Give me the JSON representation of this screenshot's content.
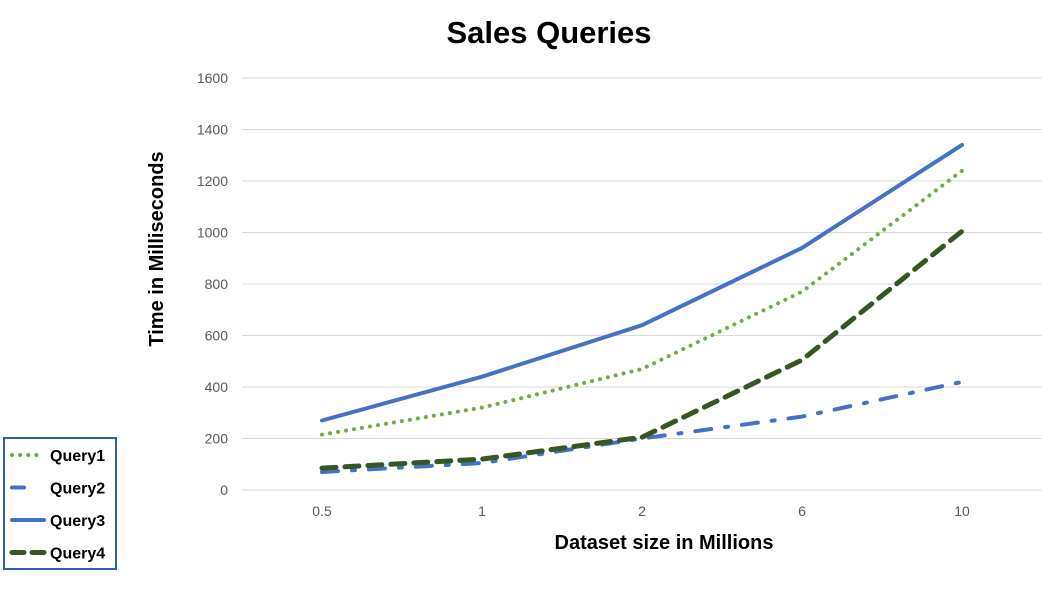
{
  "chart_data": {
    "type": "line",
    "title": "Sales Queries",
    "xlabel": "Dataset size in Millions",
    "ylabel": "Time in Milliseconds",
    "categories": [
      "0.5",
      "1",
      "2",
      "6",
      "10"
    ],
    "yticks": [
      "0",
      "200",
      "400",
      "600",
      "800",
      "1000",
      "1200",
      "1400",
      "1600"
    ],
    "ylim": [
      0,
      1600
    ],
    "grid": true,
    "legend_position": "bottom-left",
    "series": [
      {
        "name": "Query1",
        "values": [
          215,
          320,
          470,
          770,
          1240
        ],
        "color": "#70AD47",
        "style": "dotted"
      },
      {
        "name": "Query2",
        "values": [
          70,
          105,
          200,
          285,
          420
        ],
        "color": "#4472C4",
        "style": "dash-dot"
      },
      {
        "name": "Query3",
        "values": [
          270,
          440,
          640,
          940,
          1340
        ],
        "color": "#4472C4",
        "style": "solid"
      },
      {
        "name": "Query4",
        "values": [
          85,
          120,
          205,
          505,
          1005
        ],
        "color": "#375623",
        "style": "dashed"
      }
    ]
  }
}
